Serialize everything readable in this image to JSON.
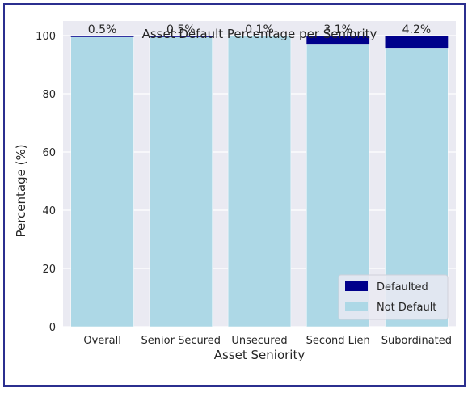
{
  "chart_data": {
    "type": "bar",
    "stacked": true,
    "title": "Asset Default Percentage per Seniority",
    "xlabel": "Asset Seniority",
    "ylabel": "Percentage (%)",
    "ylim": [
      0,
      105
    ],
    "yticks": [
      "0",
      "20",
      "40",
      "60",
      "80",
      "100"
    ],
    "categories": [
      "Overall",
      "Senior Secured",
      "Unsecured",
      "Second Lien",
      "Subordinated"
    ],
    "series": [
      {
        "name": "Not Default",
        "color": "#add8e6",
        "values": [
          99.5,
          99.5,
          99.9,
          96.9,
          95.8
        ]
      },
      {
        "name": "Defaulted",
        "color": "#00008b",
        "values": [
          0.5,
          0.5,
          0.1,
          3.1,
          4.2
        ]
      }
    ],
    "data_labels": [
      "0.5%",
      "0.5%",
      "0.1%",
      "3.1%",
      "4.2%"
    ],
    "grid": true,
    "legend": {
      "position": "bottom-right"
    }
  }
}
